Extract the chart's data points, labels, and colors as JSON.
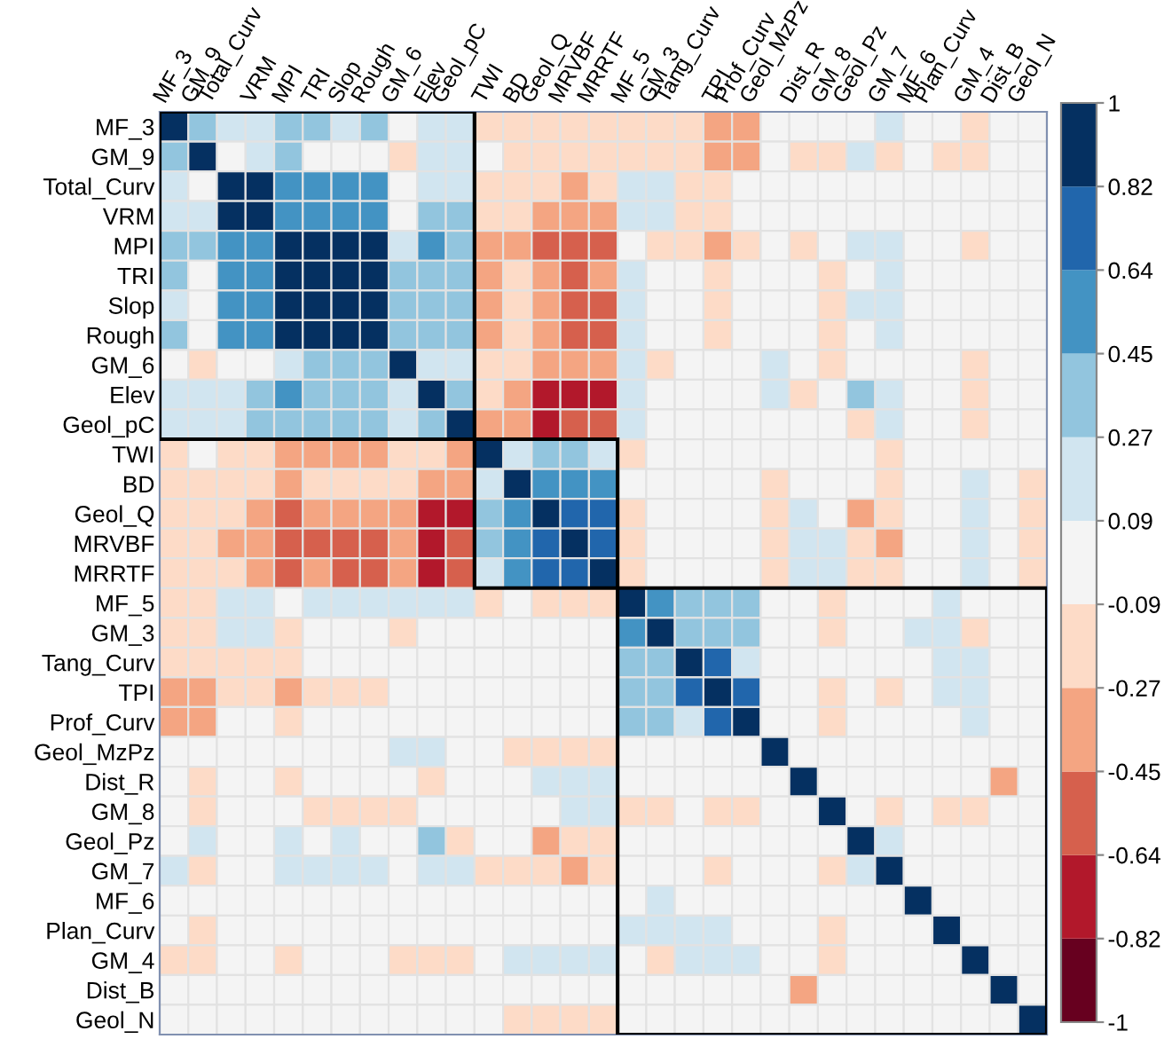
{
  "chart_data": {
    "type": "heatmap",
    "categories": [
      "MF_3",
      "GM_9",
      "Total_Curv",
      "VRM",
      "MPI",
      "TRI",
      "Slop",
      "Rough",
      "GM_6",
      "Elev",
      "Geol_pC",
      "TWI",
      "BD",
      "Geol_Q",
      "MRVBF",
      "MRRTF",
      "MF_5",
      "GM_3",
      "Tang_Curv",
      "TPI",
      "Prof_Curv",
      "Geol_MzPz",
      "Dist_R",
      "GM_8",
      "Geol_Pz",
      "GM_7",
      "MF_6",
      "Plan_Curv",
      "GM_4",
      "Dist_B",
      "Geol_N"
    ],
    "y_categories": [
      "MF_3",
      "GM_9",
      "Total_Curv",
      "VRM",
      "MPI",
      "TRI",
      "Slop",
      "Rough",
      "GM_6",
      "Elev",
      "Geol_pC",
      "TWI",
      "BD",
      "Geol_Q",
      "MRVBF",
      "MRRTF",
      "MF_5",
      "GM_3",
      "Tang_Curv",
      "TPI",
      "Prof_Curv",
      "Geol_MzPz",
      "Dist_R",
      "GM_8",
      "Geol_Pz",
      "GM_7",
      "MF_6",
      "Plan_Curv",
      "GM_4",
      "Dist_B",
      "Geol_N"
    ],
    "cells": [
      [
        1,
        0.36,
        0.18,
        0.18,
        0.36,
        0.36,
        0.18,
        0.36,
        0,
        0.18,
        0.18,
        -0.18,
        -0.18,
        -0.18,
        -0.18,
        -0.18,
        -0.18,
        -0.18,
        -0.18,
        -0.36,
        -0.36,
        0,
        0,
        0,
        0,
        0.18,
        0,
        0,
        -0.18,
        0,
        0
      ],
      [
        0.36,
        1,
        0,
        0.18,
        0.36,
        0,
        0,
        0,
        -0.18,
        0.18,
        0.18,
        0,
        -0.18,
        -0.18,
        -0.18,
        -0.18,
        -0.18,
        -0.18,
        -0.18,
        -0.36,
        -0.36,
        0,
        -0.18,
        -0.18,
        0.18,
        -0.18,
        0,
        -0.18,
        -0.18,
        0,
        0
      ],
      [
        0.18,
        0,
        1,
        0.91,
        0.55,
        0.55,
        0.55,
        0.55,
        0,
        0.18,
        0.18,
        -0.18,
        -0.18,
        -0.18,
        -0.36,
        -0.18,
        0.18,
        0.18,
        -0.18,
        -0.18,
        0,
        0,
        0,
        0,
        0,
        0,
        0,
        0,
        0,
        0,
        0
      ],
      [
        0.18,
        0.18,
        0.91,
        1,
        0.55,
        0.55,
        0.55,
        0.55,
        0,
        0.36,
        0.36,
        -0.18,
        -0.18,
        -0.36,
        -0.36,
        -0.36,
        0.18,
        0.18,
        -0.18,
        -0.18,
        0,
        0,
        0,
        0,
        0,
        0,
        0,
        0,
        0,
        0,
        0
      ],
      [
        0.36,
        0.36,
        0.55,
        0.55,
        1,
        0.91,
        0.91,
        0.91,
        0.18,
        0.55,
        0.36,
        -0.36,
        -0.36,
        -0.55,
        -0.55,
        -0.55,
        0,
        -0.18,
        -0.18,
        -0.36,
        -0.18,
        0,
        -0.18,
        0,
        0.18,
        0.18,
        0,
        0,
        -0.18,
        0,
        0
      ],
      [
        0.36,
        0,
        0.55,
        0.55,
        0.91,
        1,
        0.91,
        0.91,
        0.36,
        0.36,
        0.36,
        -0.36,
        -0.18,
        -0.36,
        -0.55,
        -0.36,
        0.18,
        0,
        0,
        -0.18,
        0,
        0,
        0,
        -0.18,
        0,
        0.18,
        0,
        0,
        0,
        0,
        0
      ],
      [
        0.18,
        0,
        0.55,
        0.55,
        0.91,
        0.91,
        1,
        0.91,
        0.36,
        0.36,
        0.36,
        -0.36,
        -0.18,
        -0.36,
        -0.55,
        -0.55,
        0.18,
        0,
        0,
        -0.18,
        0,
        0,
        0,
        -0.18,
        0.18,
        0.18,
        0,
        0,
        0,
        0,
        0
      ],
      [
        0.36,
        0,
        0.55,
        0.55,
        0.91,
        0.91,
        0.91,
        1,
        0.36,
        0.36,
        0.36,
        -0.36,
        -0.18,
        -0.36,
        -0.55,
        -0.55,
        0.18,
        0,
        0,
        -0.18,
        0,
        0,
        0,
        -0.18,
        0,
        0.18,
        0,
        0,
        0,
        0,
        0
      ],
      [
        0,
        -0.18,
        0,
        0,
        0.18,
        0.36,
        0.36,
        0.36,
        1,
        0.18,
        0.18,
        -0.18,
        -0.18,
        -0.36,
        -0.36,
        -0.36,
        0.18,
        -0.18,
        0,
        0,
        0,
        0.18,
        0,
        -0.18,
        0,
        0,
        0,
        0,
        -0.18,
        0,
        0
      ],
      [
        0.18,
        0.18,
        0.18,
        0.36,
        0.55,
        0.36,
        0.36,
        0.36,
        0.18,
        1,
        0.36,
        -0.18,
        -0.36,
        -0.73,
        -0.73,
        -0.73,
        0.18,
        0,
        0,
        0,
        0,
        0.18,
        -0.18,
        0,
        0.36,
        0.18,
        0,
        0,
        -0.18,
        0,
        0
      ],
      [
        0.18,
        0.18,
        0.18,
        0.36,
        0.36,
        0.36,
        0.36,
        0.36,
        0.18,
        0.36,
        1,
        -0.36,
        -0.36,
        -0.73,
        -0.55,
        -0.55,
        0.18,
        0,
        0,
        0,
        0,
        0,
        0,
        0,
        -0.18,
        0.18,
        0,
        0,
        -0.18,
        0,
        0
      ],
      [
        -0.18,
        0,
        -0.18,
        -0.18,
        -0.36,
        -0.36,
        -0.36,
        -0.36,
        -0.18,
        -0.18,
        -0.36,
        1,
        0.18,
        0.36,
        0.36,
        0.18,
        -0.18,
        0,
        0,
        0,
        0,
        0,
        0,
        0,
        0,
        -0.18,
        0,
        0,
        0,
        0,
        0
      ],
      [
        -0.18,
        -0.18,
        -0.18,
        -0.18,
        -0.36,
        -0.18,
        -0.18,
        -0.18,
        -0.18,
        -0.36,
        -0.36,
        0.18,
        1,
        0.55,
        0.55,
        0.55,
        0,
        0,
        0,
        0,
        0,
        -0.18,
        0,
        0,
        0,
        -0.18,
        0,
        0,
        0.18,
        0,
        -0.18
      ],
      [
        -0.18,
        -0.18,
        -0.18,
        -0.36,
        -0.55,
        -0.36,
        -0.36,
        -0.36,
        -0.36,
        -0.73,
        -0.73,
        0.36,
        0.55,
        1,
        0.73,
        0.73,
        -0.18,
        0,
        0,
        0,
        0,
        -0.18,
        0.18,
        0,
        -0.36,
        -0.18,
        0,
        0,
        0.18,
        0,
        -0.18
      ],
      [
        -0.18,
        -0.18,
        -0.36,
        -0.36,
        -0.55,
        -0.55,
        -0.55,
        -0.55,
        -0.36,
        -0.73,
        -0.55,
        0.36,
        0.55,
        0.73,
        1,
        0.73,
        -0.18,
        0,
        0,
        0,
        0,
        -0.18,
        0.18,
        0.18,
        -0.18,
        -0.36,
        0,
        0,
        0.18,
        0,
        -0.18
      ],
      [
        -0.18,
        -0.18,
        -0.18,
        -0.36,
        -0.55,
        -0.36,
        -0.55,
        -0.55,
        -0.36,
        -0.73,
        -0.55,
        0.18,
        0.55,
        0.73,
        0.73,
        1,
        -0.18,
        0,
        0,
        0,
        0,
        -0.18,
        0.18,
        0.18,
        -0.18,
        -0.18,
        0,
        0,
        0.18,
        0,
        -0.18
      ],
      [
        -0.18,
        -0.18,
        0.18,
        0.18,
        0,
        0.18,
        0.18,
        0.18,
        0.18,
        0.18,
        0.18,
        -0.18,
        0,
        -0.18,
        -0.18,
        -0.18,
        1,
        0.55,
        0.36,
        0.36,
        0.36,
        0,
        0,
        -0.18,
        0,
        0,
        0,
        0.18,
        0,
        0,
        0
      ],
      [
        -0.18,
        -0.18,
        0.18,
        0.18,
        -0.18,
        0,
        0,
        0,
        -0.18,
        0,
        0,
        0,
        0,
        0,
        0,
        0,
        0.55,
        1,
        0.36,
        0.36,
        0.36,
        0,
        0,
        -0.18,
        0,
        0,
        0.18,
        0.18,
        -0.18,
        0,
        0
      ],
      [
        -0.18,
        -0.18,
        -0.18,
        -0.18,
        -0.18,
        0,
        0,
        0,
        0,
        0,
        0,
        0,
        0,
        0,
        0,
        0,
        0.36,
        0.36,
        1,
        0.73,
        0.18,
        0,
        0,
        0,
        0,
        0,
        0,
        0.18,
        0.18,
        0,
        0
      ],
      [
        -0.36,
        -0.36,
        -0.18,
        -0.18,
        -0.36,
        -0.18,
        -0.18,
        -0.18,
        0,
        0,
        0,
        0,
        0,
        0,
        0,
        0,
        0.36,
        0.36,
        0.73,
        1,
        0.73,
        0,
        0,
        -0.18,
        0,
        -0.18,
        0,
        0.18,
        0.18,
        0,
        0
      ],
      [
        -0.36,
        -0.36,
        0,
        0,
        -0.18,
        0,
        0,
        0,
        0,
        0,
        0,
        0,
        0,
        0,
        0,
        0,
        0.36,
        0.36,
        0.18,
        0.73,
        1,
        0,
        0,
        -0.18,
        0,
        0,
        0,
        0,
        0.18,
        0,
        0
      ],
      [
        0,
        0,
        0,
        0,
        0,
        0,
        0,
        0,
        0.18,
        0.18,
        0,
        0,
        -0.18,
        -0.18,
        -0.18,
        -0.18,
        0,
        0,
        0,
        0,
        0,
        1,
        0,
        0,
        0,
        0,
        0,
        0,
        0,
        0,
        0
      ],
      [
        0,
        -0.18,
        0,
        0,
        -0.18,
        0,
        0,
        0,
        0,
        -0.18,
        0,
        0,
        0,
        0.18,
        0.18,
        0.18,
        0,
        0,
        0,
        0,
        0,
        0,
        1,
        0,
        0,
        0,
        0,
        0,
        0,
        -0.36,
        0
      ],
      [
        0,
        -0.18,
        0,
        0,
        0,
        -0.18,
        -0.18,
        -0.18,
        -0.18,
        0,
        0,
        0,
        0,
        0,
        0.18,
        0.18,
        -0.18,
        -0.18,
        0,
        -0.18,
        -0.18,
        0,
        0,
        1,
        0,
        -0.18,
        0,
        -0.18,
        -0.18,
        0,
        0
      ],
      [
        0,
        0.18,
        0,
        0,
        0.18,
        0,
        0.18,
        0,
        0,
        0.36,
        -0.18,
        0,
        0,
        -0.36,
        -0.18,
        -0.18,
        0,
        0,
        0,
        0,
        0,
        0,
        0,
        0,
        1,
        0.18,
        0,
        0,
        0,
        0,
        0
      ],
      [
        0.18,
        -0.18,
        0,
        0,
        0.18,
        0.18,
        0.18,
        0.18,
        0,
        0.18,
        0.18,
        -0.18,
        -0.18,
        -0.18,
        -0.36,
        -0.18,
        0,
        0,
        0,
        -0.18,
        0,
        0,
        0,
        -0.18,
        0.18,
        1,
        0,
        0,
        0,
        0,
        0
      ],
      [
        0,
        0,
        0,
        0,
        0,
        0,
        0,
        0,
        0,
        0,
        0,
        0,
        0,
        0,
        0,
        0,
        0,
        0.18,
        0,
        0,
        0,
        0,
        0,
        0,
        0,
        0,
        1,
        0,
        0,
        0,
        0
      ],
      [
        0,
        -0.18,
        0,
        0,
        0,
        0,
        0,
        0,
        0,
        0,
        0,
        0,
        0,
        0,
        0,
        0,
        0.18,
        0.18,
        0.18,
        0.18,
        0,
        0,
        0,
        -0.18,
        0,
        0,
        0,
        1,
        0,
        0,
        0
      ],
      [
        -0.18,
        -0.18,
        0,
        0,
        -0.18,
        0,
        0,
        0,
        -0.18,
        -0.18,
        -0.18,
        0,
        0.18,
        0.18,
        0.18,
        0.18,
        0,
        -0.18,
        0.18,
        0.18,
        0.18,
        0,
        0,
        -0.18,
        0,
        0,
        0,
        0,
        1,
        0,
        0
      ],
      [
        0,
        0,
        0,
        0,
        0,
        0,
        0,
        0,
        0,
        0,
        0,
        0,
        0,
        0,
        0,
        0,
        0,
        0,
        0,
        0,
        0,
        0,
        -0.36,
        0,
        0,
        0,
        0,
        0,
        0,
        1,
        0
      ],
      [
        0,
        0,
        0,
        0,
        0,
        0,
        0,
        0,
        0,
        0,
        0,
        0,
        -0.18,
        -0.18,
        -0.18,
        -0.18,
        0,
        0,
        0,
        0,
        0,
        0,
        0,
        0,
        0,
        0,
        0,
        0,
        0,
        0,
        1
      ]
    ],
    "clim": [
      -1,
      1
    ],
    "cticks": [
      -1,
      -0.82,
      -0.64,
      -0.45,
      -0.27,
      -0.09,
      0.09,
      0.27,
      0.45,
      0.64,
      0.82,
      1
    ],
    "colors": [
      "#67001f",
      "#b2182b",
      "#d6604d",
      "#f4a582",
      "#fddbc7",
      "#f4f4f4",
      "#d1e5f0",
      "#92c5de",
      "#4393c3",
      "#2166ac",
      "#053061"
    ]
  }
}
